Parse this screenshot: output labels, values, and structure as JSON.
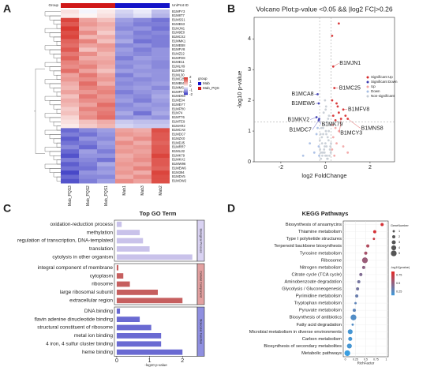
{
  "panel_labels": [
    "A",
    "B",
    "C",
    "D"
  ],
  "chart_data": [
    {
      "type": "heatmap",
      "group_label": "Group",
      "id_label": "UniProt ID",
      "legend_title": "group",
      "groups": [
        {
          "name": "Mab",
          "color": "#1414c8"
        },
        {
          "name": "Mab_PQS",
          "color": "#d01818"
        }
      ],
      "column_group": [
        1,
        1,
        1,
        0,
        0,
        0
      ],
      "columns": [
        "Mab_PQS3",
        "Mab_PQS2",
        "Mab_PQS1",
        "Mab1",
        "Mab3",
        "Mab2"
      ],
      "rows": [
        "B1MFY3",
        "B1M8T7",
        "B1MSS1",
        "B1ME63",
        "B1MJN1",
        "B1M9E0",
        "B1MCX2",
        "B1MMK1",
        "B1MEB8",
        "B1MFV8",
        "B1MZ22",
        "B1MFD8",
        "B1ME11",
        "B1MLH9",
        "B1MF82",
        "B1ML30",
        "B1MC25",
        "B1MB50",
        "B1MMS5",
        "B1MFF7",
        "B1MDK8",
        "B1ME04",
        "B1MEY7",
        "B1MFR0",
        "B1M74",
        "B1MT76",
        "B1MTE9",
        "B1MAR2",
        "B1MCA8",
        "B1MDC7",
        "B1MZX0",
        "B1MDJ5",
        "B1MRR7",
        "B1MUJ2",
        "B1MK79",
        "B1MKV2",
        "B1MW96",
        "B1MEW6",
        "B1M394",
        "B1MDV5",
        "B1MOW2"
      ],
      "values": [
        [
          0.3,
          -0.1,
          0.2,
          -0.4,
          -0.2,
          -0.6
        ],
        [
          0.2,
          0.1,
          0.3,
          -0.5,
          -0.3,
          -0.7
        ],
        [
          1.8,
          0.9,
          0.6,
          -0.9,
          -1.1,
          -1.3
        ],
        [
          1.6,
          1.0,
          0.8,
          -1.0,
          -1.2,
          -1.2
        ],
        [
          1.9,
          0.8,
          0.7,
          -1.1,
          -1.0,
          -1.3
        ],
        [
          1.7,
          1.1,
          0.5,
          -0.9,
          -1.2,
          -1.1
        ],
        [
          1.8,
          0.7,
          0.8,
          -1.0,
          -1.1,
          -1.2
        ],
        [
          1.5,
          1.2,
          0.6,
          -0.8,
          -1.3,
          -1.2
        ],
        [
          1.4,
          0.9,
          1.0,
          -1.1,
          -1.0,
          -1.2
        ],
        [
          1.6,
          0.6,
          0.9,
          -0.9,
          -1.2,
          -1.0
        ],
        [
          1.3,
          1.1,
          0.7,
          -1.0,
          -1.1,
          -1.0
        ],
        [
          1.5,
          0.8,
          0.8,
          -1.2,
          -0.9,
          -1.0
        ],
        [
          1.2,
          1.0,
          0.9,
          -1.0,
          -1.0,
          -1.1
        ],
        [
          1.1,
          1.2,
          0.8,
          -1.1,
          -0.9,
          -1.1
        ],
        [
          1.4,
          0.9,
          0.6,
          -0.9,
          -1.0,
          -1.0
        ],
        [
          0.9,
          1.3,
          0.9,
          -1.2,
          -0.9,
          -1.0
        ],
        [
          1.0,
          1.1,
          1.0,
          -1.0,
          -1.1,
          -1.0
        ],
        [
          0.8,
          1.4,
          0.8,
          -1.1,
          -1.0,
          -0.9
        ],
        [
          0.7,
          1.2,
          1.1,
          -1.0,
          -0.9,
          -1.1
        ],
        [
          0.9,
          1.0,
          1.2,
          -1.2,
          -1.0,
          -0.9
        ],
        [
          0.6,
          1.3,
          1.0,
          -1.0,
          -1.1,
          -0.8
        ],
        [
          0.8,
          1.1,
          1.1,
          -0.9,
          -1.2,
          -0.9
        ],
        [
          0.7,
          0.9,
          1.4,
          -1.1,
          -0.9,
          -1.0
        ],
        [
          0.5,
          1.2,
          1.2,
          -1.0,
          -1.0,
          -0.9
        ],
        [
          0.6,
          1.0,
          1.3,
          -0.8,
          -1.3,
          -0.8
        ],
        [
          0.4,
          1.1,
          1.4,
          -1.0,
          -0.9,
          -1.0
        ],
        [
          0.3,
          0.6,
          0.8,
          -0.5,
          -0.6,
          -0.6
        ],
        [
          0.2,
          0.5,
          0.7,
          -0.4,
          -0.5,
          -0.5
        ],
        [
          -1.4,
          -1.1,
          -0.9,
          0.9,
          0.8,
          1.7
        ],
        [
          -1.2,
          -1.3,
          -1.0,
          1.0,
          0.9,
          1.6
        ],
        [
          -1.5,
          -1.0,
          -1.1,
          0.8,
          1.1,
          1.6
        ],
        [
          -1.3,
          -1.2,
          -0.9,
          1.1,
          0.8,
          1.5
        ],
        [
          -1.1,
          -1.4,
          -1.0,
          0.9,
          1.0,
          1.6
        ],
        [
          -1.4,
          -0.9,
          -1.2,
          1.0,
          0.9,
          1.6
        ],
        [
          -1.6,
          -1.0,
          -1.0,
          0.8,
          1.0,
          1.8
        ],
        [
          -1.2,
          -1.1,
          -1.3,
          0.9,
          1.1,
          1.6
        ],
        [
          -1.5,
          -1.2,
          -0.8,
          1.0,
          0.9,
          1.6
        ],
        [
          -1.3,
          -1.3,
          -1.0,
          0.9,
          1.2,
          1.5
        ],
        [
          -1.7,
          -1.0,
          -0.9,
          1.0,
          0.8,
          1.8
        ],
        [
          -1.4,
          -1.1,
          -1.1,
          0.8,
          1.1,
          1.7
        ],
        [
          -1.6,
          -1.2,
          -0.9,
          1.1,
          0.9,
          1.7
        ]
      ],
      "zlim": [
        -2,
        2
      ],
      "zticks": [
        2,
        1,
        0,
        -1,
        -2
      ]
    },
    {
      "type": "scatter",
      "title": "Volcano Plot:p-value <0.05 && |log2 FC|>0.26",
      "x_label": "log2 FoldChange",
      "y_label": "-log10 p-value",
      "xlim": [
        -3.2,
        3.1
      ],
      "ylim": [
        0,
        4.7
      ],
      "xticks": [
        -2,
        0,
        2
      ],
      "yticks": [
        0,
        1,
        2,
        3,
        4
      ],
      "vlines": [
        -0.26,
        0.26
      ],
      "hline": 1.3,
      "legend": "right",
      "series": [
        {
          "name": "Significant Up",
          "color": "#d62728",
          "x": [
            0.3,
            0.6,
            0.35,
            0.4,
            0.3,
            0.5,
            0.8,
            0.6,
            0.9,
            0.35,
            1.0,
            0.7,
            0.45,
            0.55
          ],
          "y": [
            4.1,
            4.5,
            3.1,
            2.4,
            2.0,
            1.9,
            1.7,
            1.6,
            1.5,
            1.5,
            1.4,
            1.4,
            1.35,
            1.8
          ]
        },
        {
          "name": "Significant Down",
          "color": "#3b3bb0",
          "x": [
            -0.35,
            -0.3,
            -0.4,
            -0.28,
            -0.3
          ],
          "y": [
            2.2,
            1.9,
            1.45,
            1.4,
            1.35
          ]
        },
        {
          "name": "Up",
          "color": "#f2a3a3",
          "x": [
            0.3,
            0.35,
            0.4,
            0.5,
            0.6,
            0.45,
            0.8,
            1.0,
            0.32
          ],
          "y": [
            0.4,
            0.8,
            0.2,
            0.6,
            1.0,
            1.1,
            0.5,
            0.3,
            1.2
          ]
        },
        {
          "name": "Down",
          "color": "#a6bde3",
          "x": [
            -0.3,
            -0.4,
            -0.5,
            -0.35,
            -0.7,
            -1.0,
            -0.28
          ],
          "y": [
            0.5,
            0.9,
            0.3,
            1.1,
            0.6,
            0.2,
            0.2
          ]
        },
        {
          "name": "Non-significant",
          "color": "#c5ccd4",
          "x": [
            -0.2,
            -0.15,
            -0.1,
            -0.05,
            0,
            0.05,
            0.1,
            0.15,
            0.2,
            -0.25,
            0.25,
            -0.18,
            0.12,
            -0.08,
            0.03,
            0.08,
            -0.12,
            0.18,
            -0.22,
            0.22,
            -0.02,
            0.06,
            -0.06,
            0.14,
            -0.14,
            0.1,
            -0.1,
            0,
            0.04,
            -0.04,
            0.16,
            -0.16,
            0.2,
            -0.2,
            0.24,
            -0.24,
            0.02,
            -0.03,
            0.01,
            0.07
          ],
          "y": [
            0.3,
            0.6,
            0.9,
            1.2,
            0.2,
            0.5,
            0.8,
            1.0,
            0.4,
            0.7,
            0.6,
            1.1,
            1.4,
            1.6,
            1.8,
            0.1,
            0.3,
            0.2,
            0.9,
            0.5,
            2.0,
            1.3,
            0.4,
            0.7,
            0.2,
            0.1,
            1.1,
            0.6,
            0.9,
            0.3,
            1.5,
            0.8,
            1.2,
            0.1,
            0.3,
            0.4,
            1.0,
            0.5,
            1.7,
            0.2
          ]
        }
      ],
      "annotations": [
        {
          "text": "B1MJN1",
          "x": 0.35,
          "y": 3.1
        },
        {
          "text": "B1MC25",
          "x": 0.4,
          "y": 2.4
        },
        {
          "text": "B1MFV8",
          "x": 0.8,
          "y": 1.7
        },
        {
          "text": "B1MNS8",
          "x": 1.0,
          "y": 1.4
        },
        {
          "text": "B1MCY3",
          "x": 0.7,
          "y": 1.4
        },
        {
          "text": "B1MCA8",
          "x": -0.35,
          "y": 2.2
        },
        {
          "text": "B1MEW6",
          "x": -0.3,
          "y": 1.9
        },
        {
          "text": "B1MKV2",
          "x": -0.4,
          "y": 1.45
        },
        {
          "text": "B1MDC7",
          "x": -0.3,
          "y": 1.35
        },
        {
          "text": "B1MK79",
          "x": -0.28,
          "y": 1.4
        }
      ]
    },
    {
      "type": "grouped_barh",
      "title": "Top GO Term",
      "x_label": "-log10 p-value",
      "xlim": [
        -0.07,
        2.45
      ],
      "xticks": [
        0,
        1,
        2
      ],
      "groups": [
        {
          "name": "Biological Process",
          "color": "#c9c2ea",
          "strip": "#d9d2f2",
          "categories": [
            "oxidation-reduction process",
            "methylation",
            "regulation of transcription, DNA-templated",
            "translation",
            "cytolysis in other organism"
          ],
          "values": [
            0.15,
            0.7,
            0.8,
            1.0,
            2.3
          ]
        },
        {
          "name": "Cellular Component",
          "color": "#c65f5f",
          "strip": "#e2a0a0",
          "categories": [
            "integral component of membrane",
            "cytoplasm",
            "ribosome",
            "large ribosomal subunit",
            "extracellular region"
          ],
          "values": [
            0.05,
            0.2,
            0.4,
            1.25,
            2.0
          ]
        },
        {
          "name": "Molecular Function",
          "color": "#6a6ad2",
          "strip": "#8f8fe0",
          "categories": [
            "DNA binding",
            "flavin adenine dinucleotide binding",
            "structural constituent of ribosome",
            "metal ion binding",
            "4 iron, 4 sulfur cluster binding",
            "heme binding"
          ],
          "values": [
            0.1,
            0.7,
            1.05,
            1.35,
            1.35,
            2.0
          ]
        }
      ]
    },
    {
      "type": "bubble",
      "title": "KEGG Pathways",
      "x_label": "RichFactor",
      "xlim": [
        -0.05,
        1.05
      ],
      "xticks": [
        0,
        0.25,
        0.5,
        0.75,
        1
      ],
      "categories": [
        "Biosynthesis of ansamycins",
        "Thiamine metabolism",
        "Type I polyketide structures",
        "Terpenoid backbone biosynthesis",
        "Tyrosine metabolism",
        "Ribosome",
        "Nitrogen metabolism",
        "Citrate cycle (TCA cycle)",
        "Aminobenzoate degradation",
        "Glycolysis / Gluconeogenesis",
        "Pyrimidine metabolism",
        "Tryptophan metabolism",
        "Pyruvate metabolism",
        "Biosynthesis of antibiotics",
        "Fatty acid degradation",
        "Microbial metabolism in diverse environments",
        "Carbon metabolism",
        "Biosynthesis of secondary metabolites",
        "Metabolic pathways"
      ],
      "x": [
        0.9,
        0.72,
        0.7,
        0.55,
        0.5,
        0.48,
        0.45,
        0.38,
        0.33,
        0.3,
        0.28,
        0.25,
        0.22,
        0.2,
        0.18,
        0.12,
        0.12,
        0.1,
        0.05
      ],
      "sizes": [
        2,
        2,
        1,
        2,
        2,
        5,
        2,
        2,
        2,
        2,
        2,
        1,
        2,
        5,
        1,
        4,
        3,
        4,
        5
      ],
      "pvalues": [
        0.8,
        0.8,
        0.75,
        0.65,
        0.6,
        0.55,
        0.5,
        0.45,
        0.4,
        0.4,
        0.35,
        0.3,
        0.3,
        0.25,
        0.25,
        0.2,
        0.2,
        0.2,
        0.15
      ],
      "size_title": "GeneNumber",
      "size_ticks": [
        1,
        2,
        3,
        4,
        5
      ],
      "color_title": "-log10(pvalue)",
      "clim": [
        0.15,
        0.85
      ],
      "cticks": [
        0.75,
        0.5,
        0.25
      ],
      "color_low": "#3a9ee0",
      "color_high": "#e02a2a"
    }
  ]
}
